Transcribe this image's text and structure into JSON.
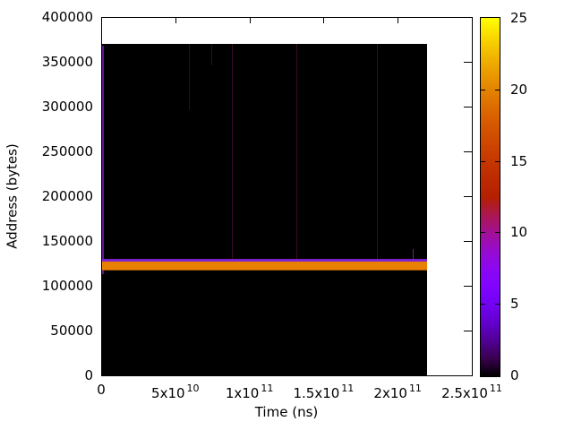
{
  "figure": {
    "background": "#ffffff",
    "frame_color": "#000000",
    "text_color": "#000000"
  },
  "chart_data": {
    "type": "heatmap",
    "title": "",
    "xlabel": "Time (ns)",
    "ylabel": "Address (bytes)",
    "xlim": [
      0,
      250000000000
    ],
    "ylim": [
      0,
      400000
    ],
    "grid": false,
    "legend": "none",
    "x_ticks": [
      {
        "value": 0,
        "label": "0"
      },
      {
        "value": 50000000000,
        "label": "5x10^10"
      },
      {
        "value": 100000000000,
        "label": "1x10^11"
      },
      {
        "value": 150000000000,
        "label": "1.5x10^11"
      },
      {
        "value": 200000000000,
        "label": "2x10^11"
      },
      {
        "value": 250000000000,
        "label": "2.5x10^11"
      }
    ],
    "y_ticks": [
      {
        "value": 0,
        "label": "0"
      },
      {
        "value": 50000,
        "label": "50000"
      },
      {
        "value": 100000,
        "label": "100000"
      },
      {
        "value": 150000,
        "label": "150000"
      },
      {
        "value": 200000,
        "label": "200000"
      },
      {
        "value": 250000,
        "label": "250000"
      },
      {
        "value": 300000,
        "label": "300000"
      },
      {
        "value": 350000,
        "label": "350000"
      },
      {
        "value": 400000,
        "label": "400000"
      }
    ],
    "colorbar": {
      "min": 0,
      "max": 25,
      "ticks": [
        0,
        5,
        10,
        15,
        20,
        25
      ],
      "position": "right",
      "palette_name": "gnuplot default pm3d (rgbformulae 7,5,15: black-purple-red-orange-yellow)",
      "palette_stops": [
        [
          0.0,
          "#000000"
        ],
        [
          0.05,
          "#390050"
        ],
        [
          0.1,
          "#510096"
        ],
        [
          0.15,
          "#6300ce"
        ],
        [
          0.2,
          "#7202f2"
        ],
        [
          0.25,
          "#8004ff"
        ],
        [
          0.3,
          "#8c07f2"
        ],
        [
          0.35,
          "#970bce"
        ],
        [
          0.4,
          "#a11096"
        ],
        [
          0.45,
          "#ab174f"
        ],
        [
          0.5,
          "#b42000"
        ],
        [
          0.55,
          "#bd2a00"
        ],
        [
          0.6,
          "#c63700"
        ],
        [
          0.65,
          "#ce4600"
        ],
        [
          0.7,
          "#d55700"
        ],
        [
          0.75,
          "#dd6c00"
        ],
        [
          0.8,
          "#e48300"
        ],
        [
          0.85,
          "#eb9d00"
        ],
        [
          0.9,
          "#f2ba00"
        ],
        [
          0.95,
          "#f9db00"
        ],
        [
          1.0,
          "#ffff00"
        ]
      ]
    },
    "data": {
      "background_value": 0,
      "background_color": "#000000",
      "extent": {
        "time_ns": [
          0,
          220000000000
        ],
        "address_bytes": [
          0,
          370000
        ]
      },
      "hot_band": {
        "time_ns": [
          600000000,
          220000000000
        ],
        "address_bytes": [
          117000,
          127000
        ],
        "value": 20,
        "color": "#e88004",
        "top_edge": {
          "address_bytes": [
            127000,
            130000
          ],
          "value": 7,
          "color": "#7d22cd"
        }
      },
      "streaks": [
        {
          "time_ns": 1500000000,
          "address_bytes": [
            113000,
            368000
          ],
          "value": 4,
          "color": "#5a1b8f",
          "width": 2
        },
        {
          "time_ns": 59000000000,
          "address_bytes": [
            296000,
            370000
          ],
          "value": 1,
          "color": "#33091f",
          "width": 1
        },
        {
          "time_ns": 74500000000,
          "address_bytes": [
            346000,
            370000
          ],
          "value": 1,
          "color": "#33091f",
          "width": 1
        },
        {
          "time_ns": 88000000000,
          "address_bytes": [
            130000,
            370000
          ],
          "value": 1,
          "color": "#3a0d28",
          "width": 1
        },
        {
          "time_ns": 131500000000,
          "address_bytes": [
            130000,
            370000
          ],
          "value": 1,
          "color": "#3a0d28",
          "width": 1
        },
        {
          "time_ns": 186000000000,
          "address_bytes": [
            130000,
            370000
          ],
          "value": 1,
          "color": "#3a0d28",
          "width": 1
        },
        {
          "time_ns": 210000000000,
          "address_bytes": [
            130000,
            141000
          ],
          "value": 5,
          "color": "#6a2099",
          "width": 1
        }
      ]
    }
  }
}
